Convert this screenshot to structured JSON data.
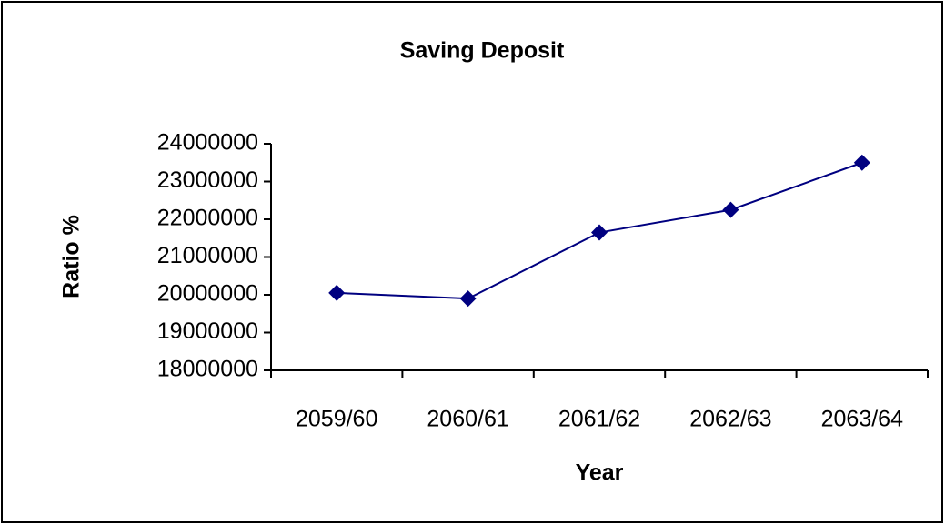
{
  "chart_data": {
    "type": "line",
    "title": "Saving Deposit",
    "x_label": "Year",
    "y_label": "Ratio %",
    "categories": [
      "2059/60",
      "2060/61",
      "2061/62",
      "2062/63",
      "2063/64"
    ],
    "series": [
      {
        "name": "Saving Deposit",
        "color": "#000080",
        "values": [
          20050000,
          19900000,
          21650000,
          22250000,
          23500000
        ]
      }
    ],
    "ylim": [
      18000000,
      24000000
    ],
    "yticks": [
      18000000,
      19000000,
      20000000,
      21000000,
      22000000,
      23000000,
      24000000
    ],
    "grid": false,
    "legend": false
  }
}
